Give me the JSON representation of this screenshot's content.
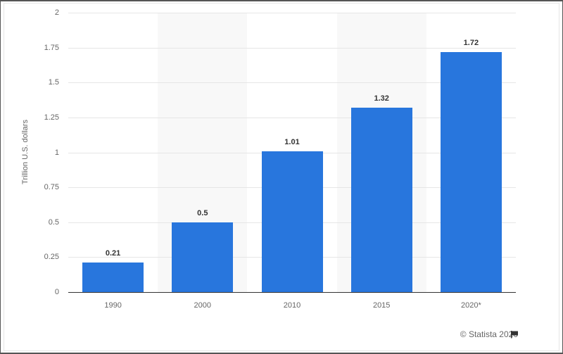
{
  "chart_data": {
    "type": "bar",
    "title": "",
    "xlabel": "",
    "ylabel": "Trillion U.S. dollars",
    "categories": [
      "1990",
      "2000",
      "2010",
      "2015",
      "2020*"
    ],
    "values": [
      0.21,
      0.5,
      1.01,
      1.32,
      1.72
    ],
    "value_labels": [
      "0.21",
      "0.5",
      "1.01",
      "1.32",
      "1.72"
    ],
    "ylim": [
      0,
      2
    ],
    "yticks": [
      "0",
      "0.25",
      "0.5",
      "0.75",
      "1",
      "1.25",
      "1.5",
      "1.75",
      "2"
    ],
    "grid": true,
    "legend": null,
    "bar_color": "#2876dd"
  },
  "credit": {
    "text": "© Statista 2020",
    "icon": "flag-icon"
  }
}
